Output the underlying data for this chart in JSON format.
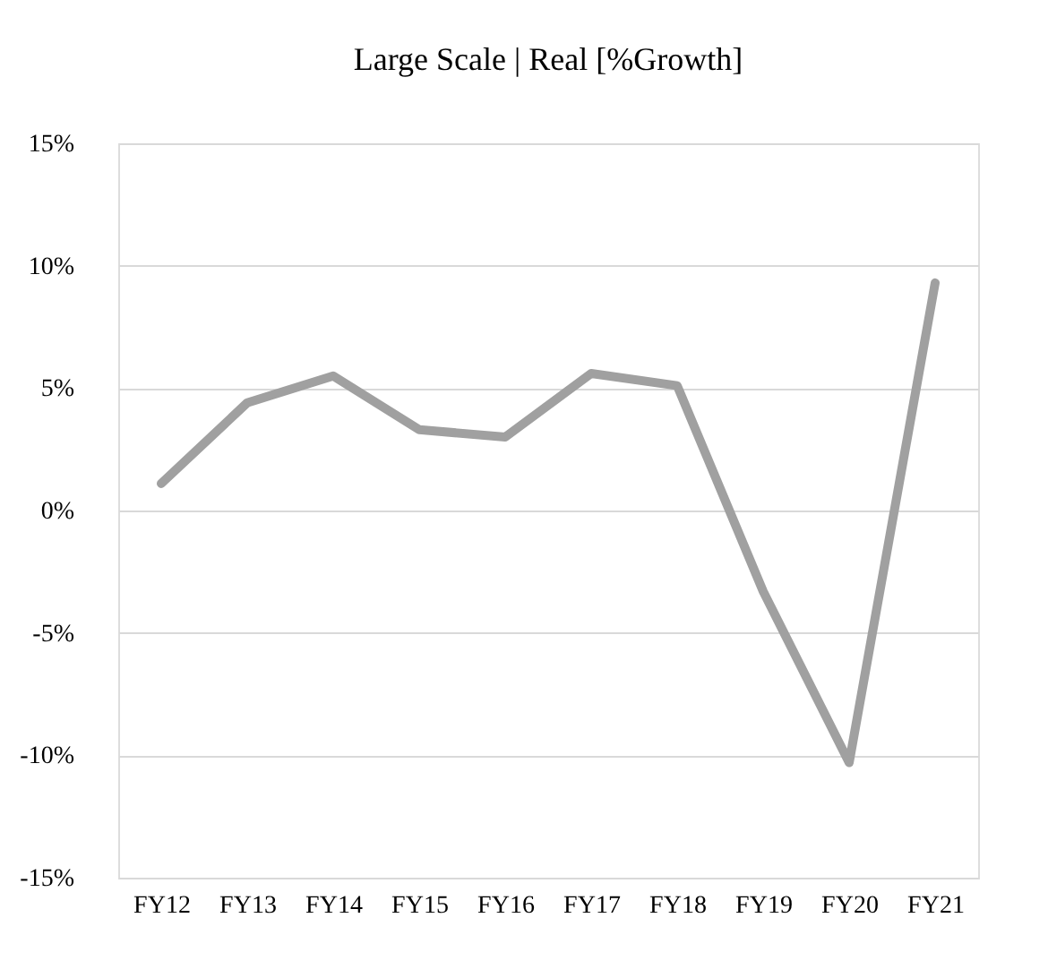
{
  "chart_data": {
    "type": "line",
    "title": "Large Scale | Real [%Growth]",
    "categories": [
      "FY12",
      "FY13",
      "FY14",
      "FY15",
      "FY16",
      "FY17",
      "FY18",
      "FY19",
      "FY20",
      "FY21"
    ],
    "series": [
      {
        "color": "#a0a0a0",
        "values": [
          1.1,
          4.4,
          5.5,
          3.3,
          3.0,
          5.6,
          5.1,
          -3.3,
          -10.3,
          9.3
        ]
      }
    ],
    "ylim": [
      -15,
      15
    ],
    "yticks": [
      {
        "value": -15,
        "label": "-15%"
      },
      {
        "value": -10,
        "label": "-10%"
      },
      {
        "value": -5,
        "label": "-5%"
      },
      {
        "value": 0,
        "label": "0%"
      },
      {
        "value": 5,
        "label": "5%"
      },
      {
        "value": 10,
        "label": "10%"
      },
      {
        "value": 15,
        "label": "15%"
      }
    ],
    "grid": "y",
    "marker": "none",
    "line_style": "solid",
    "legend": false
  }
}
